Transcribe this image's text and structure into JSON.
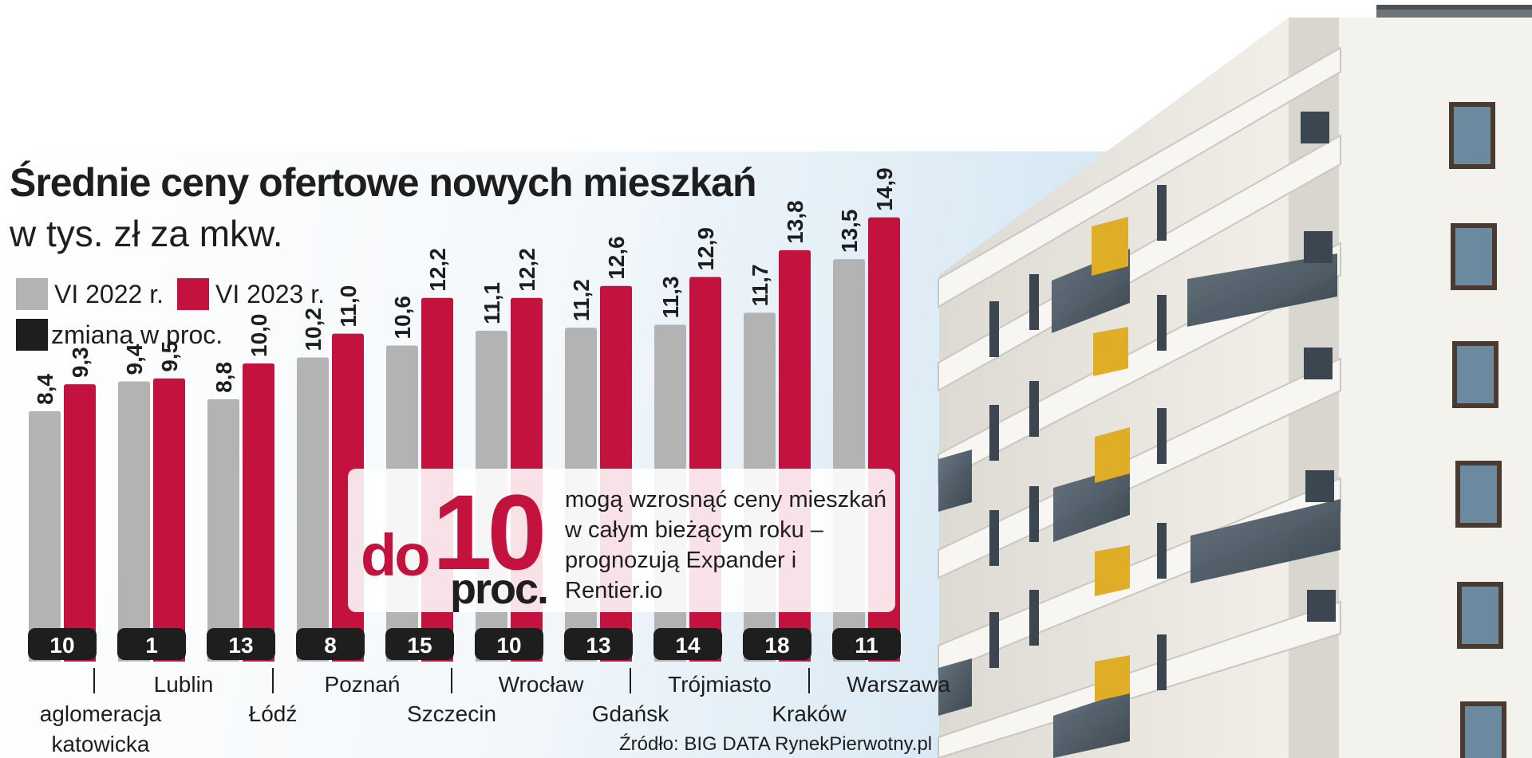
{
  "header": {
    "title": "Średnie ceny ofertowe nowych mieszkań",
    "subtitle": "w tys. zł za mkw."
  },
  "legend": {
    "items": [
      {
        "label": "VI 2022 r.",
        "color": "#b3b3b3"
      },
      {
        "label": "VI 2023 r.",
        "color": "#c4123f"
      },
      {
        "label": "zmiana w proc.",
        "color": "#1e1e1e"
      }
    ]
  },
  "chart_data": {
    "type": "bar",
    "title": "Średnie ceny ofertowe nowych mieszkań",
    "subtitle": "w tys. zł za mkw.",
    "categories": [
      "aglomeracja katowicka",
      "Lublin",
      "Łódź",
      "Poznań",
      "Szczecin",
      "Wrocław",
      "Gdańsk",
      "Trójmiasto",
      "Kraków",
      "Warszawa"
    ],
    "series": [
      {
        "name": "VI 2022 r.",
        "color": "#b3b3b3",
        "values": [
          8.4,
          9.4,
          8.8,
          10.2,
          10.6,
          11.1,
          11.2,
          11.3,
          11.7,
          13.5
        ],
        "labels": [
          "8,4",
          "9,4",
          "8,8",
          "10,2",
          "10,6",
          "11,1",
          "11,2",
          "11,3",
          "11,7",
          "13,5"
        ]
      },
      {
        "name": "VI 2023 r.",
        "color": "#c4123f",
        "values": [
          9.3,
          9.5,
          10.0,
          11.0,
          12.2,
          12.2,
          12.6,
          12.9,
          13.8,
          14.9
        ],
        "labels": [
          "9,3",
          "9,5",
          "10,0",
          "11,0",
          "12,2",
          "12,2",
          "12,6",
          "12,9",
          "13,8",
          "14,9"
        ]
      }
    ],
    "change": {
      "name": "zmiana w proc.",
      "values": [
        10,
        1,
        13,
        8,
        15,
        10,
        13,
        14,
        18,
        11
      ]
    },
    "category_label_rows": [
      [
        "aglomeracja",
        "katowicka"
      ],
      [
        "Lublin"
      ],
      [
        "Łódź"
      ],
      [
        "Poznań"
      ],
      [
        "Szczecin"
      ],
      [
        "Wrocław"
      ],
      [
        "Gdańsk"
      ],
      [
        "Trójmiasto"
      ],
      [
        "Kraków"
      ],
      [
        "Warszawa"
      ]
    ],
    "legend_position": "top-left",
    "grid": false
  },
  "callout": {
    "prefix": "do",
    "number": "10",
    "unit": "proc.",
    "text": "mogą wzrosnąć ceny mieszkań w całym bieżącym roku – prognozują Expander i Rentier.io"
  },
  "source": "Źródło: BIG DATA RynekPierwotny.pl"
}
